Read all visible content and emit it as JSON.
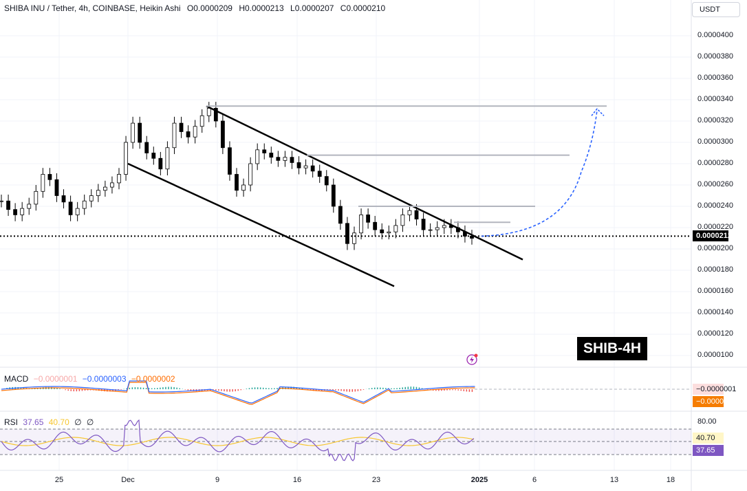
{
  "header": {
    "symbol": "SHIBA INU / Tether, 4h, COINBASE, Heikin Ashi",
    "open": "O0.0000209",
    "high": "H0.0000213",
    "low": "L0.0000207",
    "close": "C0.0000210"
  },
  "currency": "USDT",
  "price_axis": {
    "labels": [
      "0.0000400",
      "0.0000380",
      "0.0000360",
      "0.0000340",
      "0.0000320",
      "0.0000300",
      "0.0000280",
      "0.0000260",
      "0.0000240",
      "0.0000220",
      "0.0000200",
      "0.0000180",
      "0.0000160",
      "0.0000140",
      "0.0000120",
      "0.0000100"
    ],
    "current_price": "0.0000212"
  },
  "time_axis": [
    "25",
    "Dec",
    "9",
    "16",
    "23",
    "2025",
    "6",
    "13",
    "18"
  ],
  "watermark": "SHIB-4H",
  "macd": {
    "name": "MACD",
    "v1": "−0.0000001",
    "v2": "−0.0000003",
    "v3": "−0.0000002",
    "tag1": "−0.0000001",
    "tag2": "−0.0000002"
  },
  "rsi": {
    "name": "RSI",
    "v1": "37.65",
    "v2": "40.70",
    "v3": "∅",
    "v4": "∅",
    "level_label": "80.00",
    "tag_ma": "40.70",
    "tag_rsi": "37.65"
  },
  "colors": {
    "up": "#000000",
    "grid": "#f0f3fa",
    "macd_line": "#2962ff",
    "signal_line": "#ff6d00",
    "rsi_line": "#7e57c2",
    "rsi_ma": "#f7c62f",
    "projection": "#2962ff",
    "current_tag": "#000000",
    "tag_orange": "#f57c00",
    "tag_pink": "#fcdede",
    "tag_purple": "#7e57c2",
    "tag_yellow": "#fff6c7"
  },
  "chart_data": {
    "type": "candlestick",
    "ylim": [
      1e-05,
      4e-05
    ],
    "series_close": [
      2.45e-05,
      2.37e-05,
      2.32e-05,
      2.38e-05,
      2.42e-05,
      2.54e-05,
      2.7e-05,
      2.65e-05,
      2.5e-05,
      2.44e-05,
      2.32e-05,
      2.38e-05,
      2.45e-05,
      2.5e-05,
      2.55e-05,
      2.58e-05,
      2.62e-05,
      2.7e-05,
      3e-05,
      3.18e-05,
      3e-05,
      2.9e-05,
      2.85e-05,
      2.75e-05,
      2.95e-05,
      3.18e-05,
      3.1e-05,
      3.05e-05,
      3.15e-05,
      3.25e-05,
      3.32e-05,
      3.2e-05,
      2.95e-05,
      2.7e-05,
      2.55e-05,
      2.6e-05,
      2.8e-05,
      2.93e-05,
      2.9e-05,
      2.86e-05,
      2.83e-05,
      2.86e-05,
      2.81e-05,
      2.76e-05,
      2.78e-05,
      2.73e-05,
      2.68e-05,
      2.6e-05,
      2.4e-05,
      2.24e-05,
      2.05e-05,
      2.15e-05,
      2.32e-05,
      2.25e-05,
      2.18e-05,
      2.15e-05,
      2.16e-05,
      2.22e-05,
      2.32e-05,
      2.36e-05,
      2.28e-05,
      2.18e-05,
      2.18e-05,
      2.2e-05,
      2.22e-05,
      2.2e-05,
      2.16e-05,
      2.12e-05,
      2.1e-05
    ],
    "channel_upper": [
      [
        "Dec 7",
        3.34e-05
      ],
      [
        "Jan 5",
        1.9e-05
      ]
    ],
    "channel_lower": [
      [
        "Dec 1",
        2.8e-05
      ],
      [
        "Dec 22",
        1.65e-05
      ]
    ],
    "resistance_levels": [
      3.34e-05,
      2.88e-05,
      2.4e-05,
      2.25e-05
    ],
    "projection_target": 3.34e-05,
    "rsi_level": 80.0
  }
}
